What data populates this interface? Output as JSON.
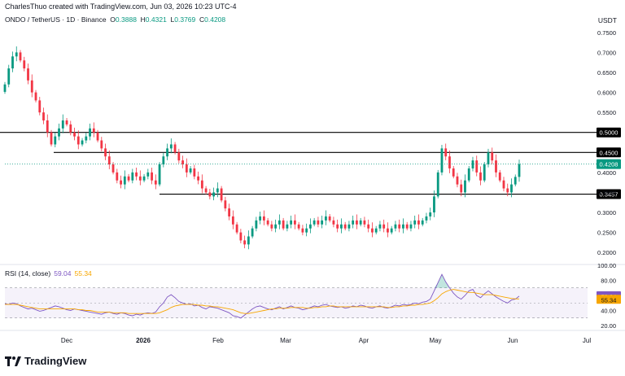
{
  "header": {
    "credit": "CharlesThuo created with TradingView.com, Jun 03, 2026 10:23 UTC-4",
    "symbol": "ONDO / TetherUS · 1D · Binance",
    "ohlc": {
      "o_label": "O",
      "o": "0.3888",
      "h_label": "H",
      "h": "0.4321",
      "l_label": "L",
      "l": "0.3769",
      "c_label": "C",
      "c": "0.4208"
    },
    "unit": "USDT"
  },
  "rsi_legend": {
    "label": "RSI (14, close)",
    "rsi": "59.04",
    "ma": "55.34"
  },
  "brand": {
    "name": "TradingView"
  },
  "colors": {
    "up": "#089981",
    "down": "#f23645",
    "rsi": "#7e57c2",
    "rsi_ma": "#f7a600",
    "hline": "#000000"
  },
  "chart_data": [
    {
      "type": "candlestick",
      "title": "ONDO / TetherUS · 1D · Binance",
      "ylabel": "USDT",
      "ylim": [
        0.18,
        0.77
      ],
      "y_ticks": [
        "0.7500",
        "0.7000",
        "0.6500",
        "0.6000",
        "0.5500",
        "0.5000",
        "0.4500",
        "0.4000",
        "0.3500",
        "0.3000",
        "0.2500",
        "0.2000"
      ],
      "x_ticks": [
        "Dec",
        "2026",
        "Feb",
        "Mar",
        "Apr",
        "May",
        "Jun",
        "Jul"
      ],
      "horizontal_levels": [
        {
          "value": 0.5,
          "label": "0.5000"
        },
        {
          "value": 0.45,
          "label": "0.4500"
        },
        {
          "value": 0.3457,
          "label": "0.3457"
        }
      ],
      "last_price": {
        "value": 0.4208,
        "label": "0.4208"
      },
      "series": [
        {
          "name": "ONDO / TetherUS",
          "close": [
            0.62,
            0.66,
            0.69,
            0.7,
            0.68,
            0.66,
            0.63,
            0.6,
            0.58,
            0.55,
            0.53,
            0.5,
            0.47,
            0.49,
            0.51,
            0.53,
            0.52,
            0.5,
            0.49,
            0.47,
            0.48,
            0.49,
            0.51,
            0.5,
            0.48,
            0.46,
            0.44,
            0.42,
            0.4,
            0.38,
            0.37,
            0.39,
            0.38,
            0.4,
            0.39,
            0.38,
            0.39,
            0.4,
            0.38,
            0.37,
            0.42,
            0.44,
            0.46,
            0.47,
            0.45,
            0.43,
            0.42,
            0.4,
            0.41,
            0.39,
            0.38,
            0.36,
            0.35,
            0.34,
            0.35,
            0.36,
            0.33,
            0.31,
            0.29,
            0.27,
            0.25,
            0.23,
            0.22,
            0.24,
            0.26,
            0.28,
            0.29,
            0.28,
            0.27,
            0.26,
            0.27,
            0.28,
            0.26,
            0.27,
            0.28,
            0.27,
            0.26,
            0.25,
            0.26,
            0.27,
            0.28,
            0.27,
            0.28,
            0.29,
            0.28,
            0.27,
            0.26,
            0.27,
            0.26,
            0.27,
            0.28,
            0.27,
            0.28,
            0.27,
            0.26,
            0.25,
            0.26,
            0.27,
            0.26,
            0.25,
            0.26,
            0.27,
            0.26,
            0.27,
            0.26,
            0.27,
            0.28,
            0.27,
            0.28,
            0.29,
            0.3,
            0.34,
            0.4,
            0.46,
            0.44,
            0.41,
            0.39,
            0.37,
            0.35,
            0.38,
            0.41,
            0.43,
            0.4,
            0.38,
            0.42,
            0.45,
            0.43,
            0.4,
            0.38,
            0.36,
            0.35,
            0.37,
            0.3888,
            0.4208
          ]
        }
      ]
    },
    {
      "type": "line",
      "title": "RSI (14, close)",
      "ylim": [
        20,
        100
      ],
      "y_ticks": [
        "100.00",
        "80.00",
        "40.00",
        "20.00"
      ],
      "bands": [
        30,
        70
      ],
      "series": [
        {
          "name": "RSI (14, close)",
          "values": [
            49,
            48,
            50,
            49,
            46,
            44,
            42,
            43,
            41,
            39,
            40,
            42,
            44,
            46,
            45,
            43,
            41,
            40,
            42,
            41,
            40,
            39,
            38,
            37,
            36,
            35,
            37,
            38,
            36,
            35,
            37,
            36,
            34,
            33,
            35,
            34,
            36,
            37,
            36,
            38,
            45,
            50,
            58,
            61,
            57,
            52,
            50,
            48,
            49,
            46,
            47,
            44,
            42,
            45,
            44,
            43,
            41,
            39,
            37,
            33,
            32,
            30,
            34,
            38,
            42,
            45,
            46,
            44,
            42,
            41,
            43,
            45,
            42,
            44,
            46,
            44,
            43,
            41,
            42,
            44,
            46,
            45,
            47,
            48,
            46,
            45,
            44,
            45,
            43,
            44,
            46,
            45,
            47,
            46,
            44,
            43,
            45,
            46,
            44,
            43,
            45,
            47,
            46,
            48,
            47,
            48,
            50,
            49,
            51,
            52,
            55,
            66,
            77,
            88,
            78,
            70,
            63,
            58,
            55,
            60,
            66,
            68,
            60,
            57,
            62,
            66,
            62,
            58,
            55,
            52,
            50,
            54,
            55,
            59.04
          ]
        },
        {
          "name": "RSI MA",
          "values": [
            48,
            48,
            48,
            48,
            47,
            46,
            45,
            44,
            43,
            42,
            42,
            42,
            42,
            42,
            42,
            42,
            42,
            42,
            42,
            41,
            41,
            40,
            40,
            39,
            38,
            38,
            38,
            38,
            37,
            37,
            37,
            37,
            36,
            36,
            36,
            36,
            36,
            36,
            36,
            36,
            37,
            39,
            41,
            44,
            46,
            47,
            48,
            48,
            48,
            48,
            47,
            47,
            46,
            46,
            45,
            45,
            44,
            43,
            42,
            41,
            39,
            37,
            36,
            36,
            37,
            38,
            39,
            40,
            41,
            42,
            42,
            43,
            43,
            43,
            44,
            44,
            44,
            44,
            43,
            43,
            44,
            44,
            45,
            45,
            46,
            46,
            45,
            45,
            45,
            45,
            45,
            45,
            45,
            45,
            45,
            45,
            45,
            45,
            45,
            44,
            44,
            45,
            45,
            46,
            46,
            47,
            47,
            48,
            48,
            49,
            50,
            53,
            57,
            62,
            65,
            67,
            68,
            67,
            66,
            65,
            64,
            64,
            63,
            62,
            61,
            61,
            61,
            60,
            59,
            58,
            57,
            56,
            55.5,
            55.34
          ]
        }
      ]
    }
  ],
  "price_axis_labels": [
    "0.7500",
    "0.7000",
    "0.6500",
    "0.6000",
    "0.5500",
    "0.5000",
    "0.4500",
    "0.4000",
    "0.3500",
    "0.3000",
    "0.2500",
    "0.2000"
  ],
  "rsi_axis_labels": [
    "100.00",
    "80.00",
    "59.04",
    "55.34",
    "40.00",
    "20.00"
  ],
  "time_axis_labels": [
    "Dec",
    "2026",
    "Feb",
    "Mar",
    "Apr",
    "May",
    "Jun",
    "Jul"
  ]
}
